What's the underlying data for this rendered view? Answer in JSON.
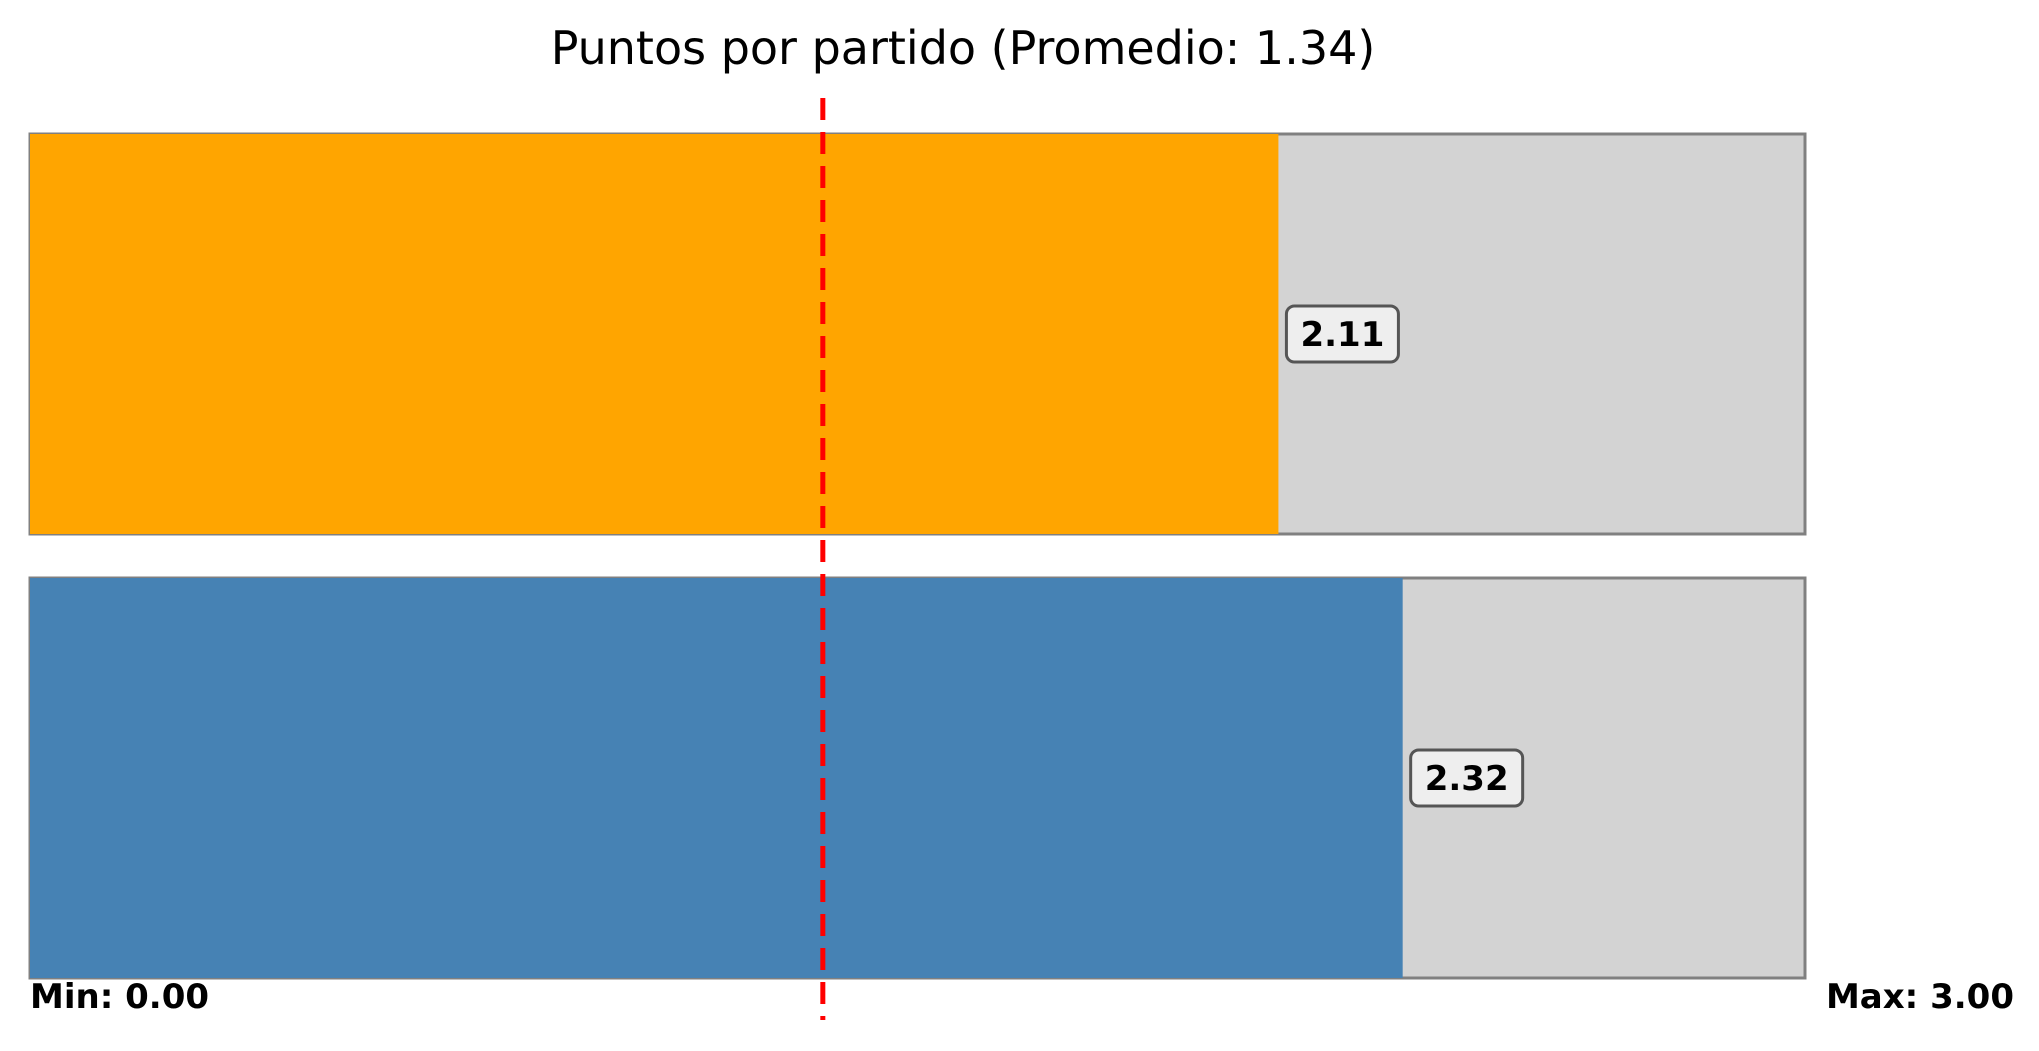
{
  "chart_data": {
    "type": "bar",
    "orientation": "horizontal",
    "title": "Puntos por partido (Promedio: 1.34)",
    "xlim": [
      0,
      3
    ],
    "grid": false,
    "legend": "none",
    "average": 1.34,
    "min_label": "Min: 0.00",
    "max_label": "Max: 3.00",
    "series": [
      {
        "value": 2.11,
        "label": "2.11",
        "color": "#FFA500"
      },
      {
        "value": 2.32,
        "label": "2.32",
        "color": "#4682B4"
      }
    ],
    "colors": {
      "track": "#D3D3D3",
      "track_border": "#808080",
      "average_line": "#FF0000",
      "label_box_fill": "#EEEEEE",
      "label_box_border": "#555555"
    }
  }
}
